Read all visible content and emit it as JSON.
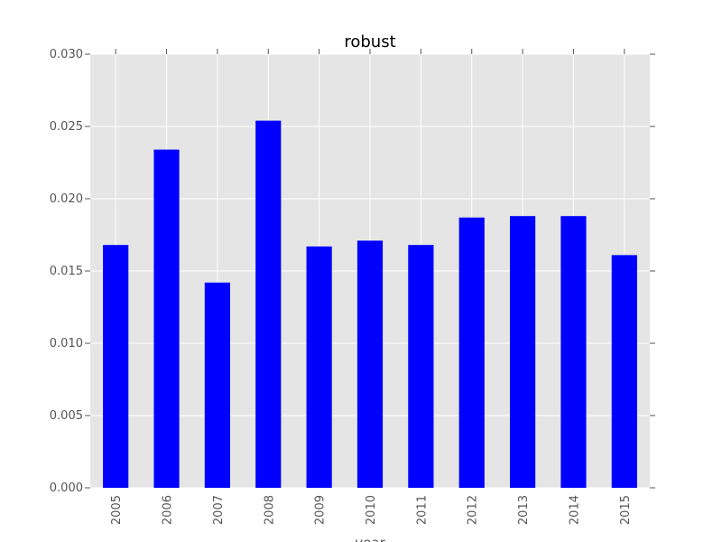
{
  "chart_data": {
    "type": "bar",
    "title": "robust",
    "xlabel": "year",
    "ylabel": "",
    "categories": [
      "2005",
      "2006",
      "2007",
      "2008",
      "2009",
      "2010",
      "2011",
      "2012",
      "2013",
      "2014",
      "2015"
    ],
    "values": [
      0.0168,
      0.0234,
      0.0142,
      0.0254,
      0.0167,
      0.0171,
      0.0168,
      0.0187,
      0.0188,
      0.0188,
      0.0161
    ],
    "ylim": [
      0,
      0.03
    ],
    "yticks": [
      "0.000",
      "0.005",
      "0.010",
      "0.015",
      "0.020",
      "0.025",
      "0.030"
    ],
    "grid": true,
    "colors": {
      "bar": "#0000ff",
      "background": "#e5e5e5",
      "grid": "#ffffff",
      "tick_text": "#555555"
    }
  }
}
